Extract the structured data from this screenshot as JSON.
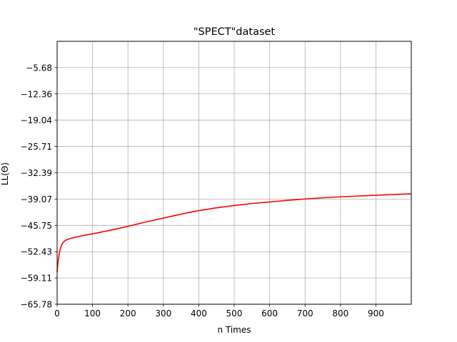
{
  "chart_data": {
    "type": "line",
    "title": "\"SPECT\"dataset",
    "xlabel": "n Times",
    "ylabel": "LL(Θ)",
    "xlim": [
      0,
      1000
    ],
    "ylim": [
      -65.78,
      0.99
    ],
    "xticks": [
      0,
      100,
      200,
      300,
      400,
      500,
      600,
      700,
      800,
      900
    ],
    "xtick_labels": [
      "0",
      "100",
      "200",
      "300",
      "400",
      "500",
      "600",
      "700",
      "800",
      "900"
    ],
    "yticks": [
      -65.78,
      -59.11,
      -52.43,
      -45.75,
      -39.07,
      -32.39,
      -25.71,
      -19.04,
      -12.36,
      -5.68
    ],
    "ytick_labels": [
      "−65.78",
      "−59.11",
      "−52.43",
      "−45.75",
      "−39.07",
      "−32.39",
      "−25.71",
      "−19.04",
      "−12.36",
      "−5.68"
    ],
    "grid": true,
    "series": [
      {
        "color": "#ff0000",
        "x": [
          0,
          2,
          5,
          8,
          12,
          16,
          20,
          25,
          30,
          40,
          50,
          75,
          100,
          150,
          200,
          250,
          300,
          350,
          400,
          450,
          500,
          550,
          600,
          650,
          700,
          750,
          800,
          850,
          900,
          950,
          1000
        ],
        "y": [
          -57.6,
          -55.5,
          -53.5,
          -52.0,
          -50.9,
          -50.2,
          -49.8,
          -49.5,
          -49.3,
          -49.0,
          -48.8,
          -48.3,
          -47.9,
          -47.0,
          -46.0,
          -44.9,
          -43.9,
          -42.9,
          -42.0,
          -41.3,
          -40.7,
          -40.2,
          -39.8,
          -39.4,
          -39.05,
          -38.75,
          -38.5,
          -38.3,
          -38.1,
          -37.9,
          -37.75
        ]
      }
    ]
  }
}
